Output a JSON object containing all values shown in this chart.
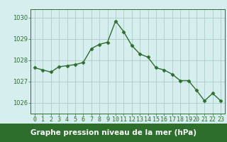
{
  "x": [
    0,
    1,
    2,
    3,
    4,
    5,
    6,
    7,
    8,
    9,
    10,
    11,
    12,
    13,
    14,
    15,
    16,
    17,
    18,
    19,
    20,
    21,
    22,
    23
  ],
  "y": [
    1027.65,
    1027.55,
    1027.45,
    1027.7,
    1027.75,
    1027.8,
    1027.9,
    1028.55,
    1028.75,
    1028.85,
    1029.85,
    1029.35,
    1028.7,
    1028.3,
    1028.15,
    1027.65,
    1027.55,
    1027.35,
    1027.05,
    1027.05,
    1026.6,
    1026.1,
    1026.45,
    1026.1
  ],
  "line_color": "#2d6e2d",
  "marker": "D",
  "marker_size": 2.5,
  "linewidth": 1.0,
  "bg_color": "#d6eeee",
  "grid_color": "#aacccc",
  "xlabel": "Graphe pression niveau de la mer (hPa)",
  "xlabel_color": "#1a4a1a",
  "xlabel_fontsize": 7.5,
  "yticks": [
    1026,
    1027,
    1028,
    1029,
    1030
  ],
  "xticks": [
    0,
    1,
    2,
    3,
    4,
    5,
    6,
    7,
    8,
    9,
    10,
    11,
    12,
    13,
    14,
    15,
    16,
    17,
    18,
    19,
    20,
    21,
    22,
    23
  ],
  "xlim": [
    -0.5,
    23.5
  ],
  "ylim": [
    1025.5,
    1030.4
  ],
  "tick_color": "#2d6e2d",
  "tick_fontsize": 6.0,
  "spine_color": "#2d6e2d",
  "bottom_bar_color": "#2d6e2d",
  "bottom_bar_height": 0.13
}
